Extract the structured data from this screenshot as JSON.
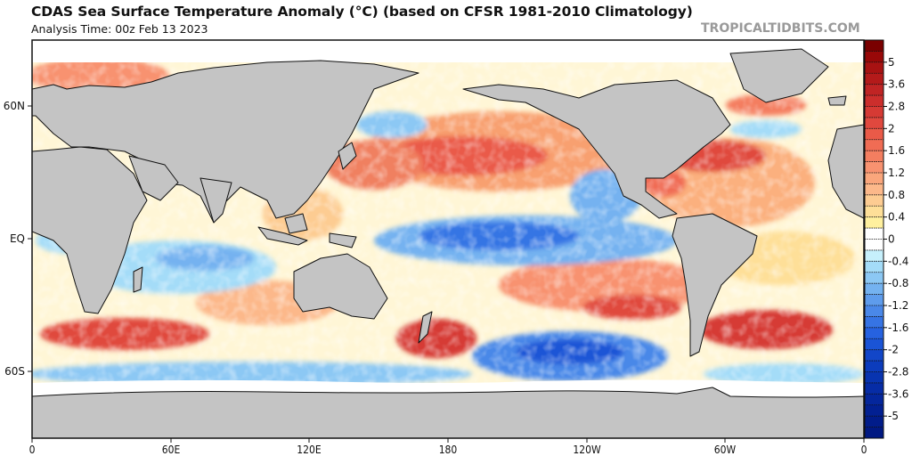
{
  "header": {
    "title": "CDAS Sea Surface Temperature Anomaly (°C) (based on CFSR 1981-2010 Climatology)",
    "subtitle": "Analysis Time: 00z Feb 13 2023",
    "credit": "TROPICALTIDBITS.COM"
  },
  "map": {
    "projection": "cylindrical equidistant",
    "lon_ticks": [
      "0",
      "60E",
      "120E",
      "180",
      "120W",
      "60W",
      "0"
    ],
    "lat_ticks": [
      "60N",
      "EQ",
      "60S"
    ],
    "land_color": "#c4c4c4",
    "ice_color": "#ffffff",
    "coast_color": "#111111"
  },
  "colorbar": {
    "unit": "°C",
    "tick_labels": [
      "5",
      "3.6",
      "2.8",
      "2",
      "1.6",
      "1.2",
      "0.8",
      "0.4",
      "0",
      "-0.4",
      "-0.8",
      "-1.2",
      "-1.6",
      "-2",
      "-2.8",
      "-3.6",
      "-5"
    ],
    "colors": [
      "#7a0000",
      "#980808",
      "#a81212",
      "#b41a1a",
      "#c02424",
      "#cc2e2c",
      "#d63a34",
      "#e0483e",
      "#ea5a48",
      "#f06c54",
      "#f47e60",
      "#f89270",
      "#faa67c",
      "#fcb88a",
      "#fdcc92",
      "#fedf98",
      "#fff09e",
      "#ffffff",
      "#ffffff",
      "#c6f0fc",
      "#a4dcf8",
      "#8cc8f4",
      "#74b2f0",
      "#5e9cec",
      "#4a88e8",
      "#3674e4",
      "#2662e0",
      "#1a54d6",
      "#1246c8",
      "#0c3cbc",
      "#0834b0",
      "#062ca6",
      "#04269c",
      "#022092",
      "#011c8a",
      "#001882"
    ]
  }
}
